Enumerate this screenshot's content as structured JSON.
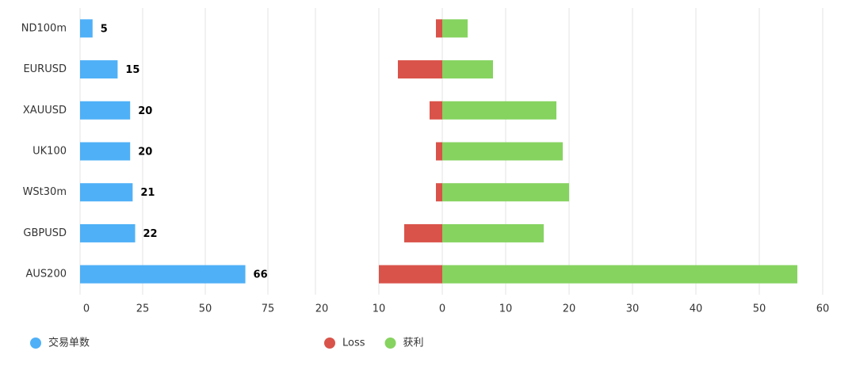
{
  "chart_data": [
    {
      "type": "bar",
      "orientation": "horizontal",
      "categories": [
        "ND100m",
        "EURUSD",
        "XAUUSD",
        "UK100",
        "WSt30m",
        "GBPUSD",
        "AUS200"
      ],
      "series": [
        {
          "name": "交易单数",
          "color": "#4fb0f7",
          "values": [
            5,
            15,
            20,
            20,
            21,
            22,
            66
          ]
        }
      ],
      "data_labels": true,
      "xlim": [
        0,
        75
      ],
      "xticks": [
        0,
        25,
        50,
        75
      ],
      "grid": true,
      "legend": "bottom-left"
    },
    {
      "type": "bar",
      "orientation": "horizontal",
      "stacked": true,
      "series": [
        {
          "name": "Loss",
          "color": "#d9534a",
          "values": [
            -1,
            -7,
            -2,
            -1,
            -1,
            -6,
            -10
          ]
        },
        {
          "name": "获利",
          "color": "#86d360",
          "values": [
            4,
            8,
            18,
            19,
            20,
            16,
            56
          ]
        }
      ],
      "data_labels": false,
      "xlim": [
        -20,
        60
      ],
      "xticks": [
        {
          "value": -20,
          "label": "20"
        },
        {
          "value": -10,
          "label": "10"
        },
        0,
        10,
        20,
        30,
        40,
        50,
        60
      ],
      "grid": true,
      "legend": "bottom-left"
    }
  ]
}
